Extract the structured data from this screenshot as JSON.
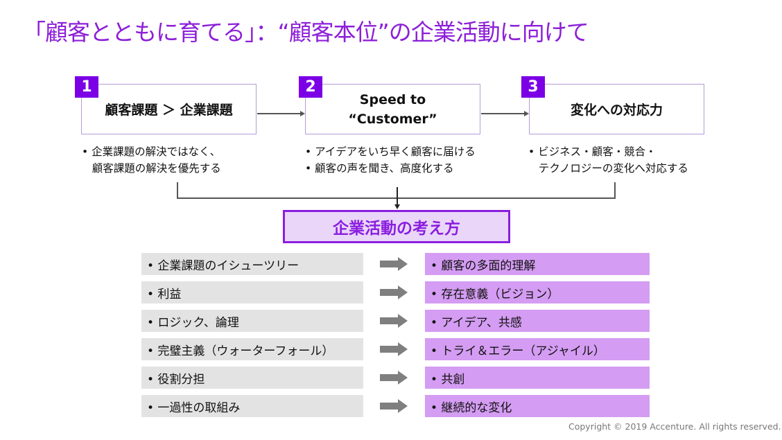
{
  "title": "「顧客とともに育てる」：“顧客本位”の企業活動に向けて",
  "steps": [
    {
      "number": "1",
      "heading": "顧客課題 ＞ 企業課題",
      "bullets": [
        "• 企業課題の解決ではなく、",
        "   顧客課題の解決を優先する"
      ]
    },
    {
      "number": "2",
      "heading": "Speed to “Customer”",
      "bullets": [
        "• アイデアをいち早く顧客に届ける",
        "• 顧客の声を聞き、高度化する"
      ]
    },
    {
      "number": "3",
      "heading": "変化への対応力",
      "bullets": [
        "• ビジネス・顧客・競合・",
        "   テクノロジーの変化へ対応する"
      ]
    }
  ],
  "center_label": "企業活動の考え方",
  "from": [
    "• 企業課題のイシューツリー",
    "• 利益",
    "• ロジック、論理",
    "• 完璧主義（ウォーターフォール）",
    "• 役割分担",
    "• 一過性の取組み"
  ],
  "to": [
    "• 顧客の多面的理解",
    "• 存在意義（ビジョン）",
    "• アイデア、共感",
    "• トライ＆エラー（アジャイル）",
    "• 共創",
    "• 継続的な変化"
  ],
  "copyright": "Copyright © 2019 Accenture. All rights reserved.",
  "colors": {
    "accent": "#7b00e6",
    "title": "#8c1fd8",
    "target_fill": "#d49cf2",
    "source_fill": "#e3e3e3"
  }
}
